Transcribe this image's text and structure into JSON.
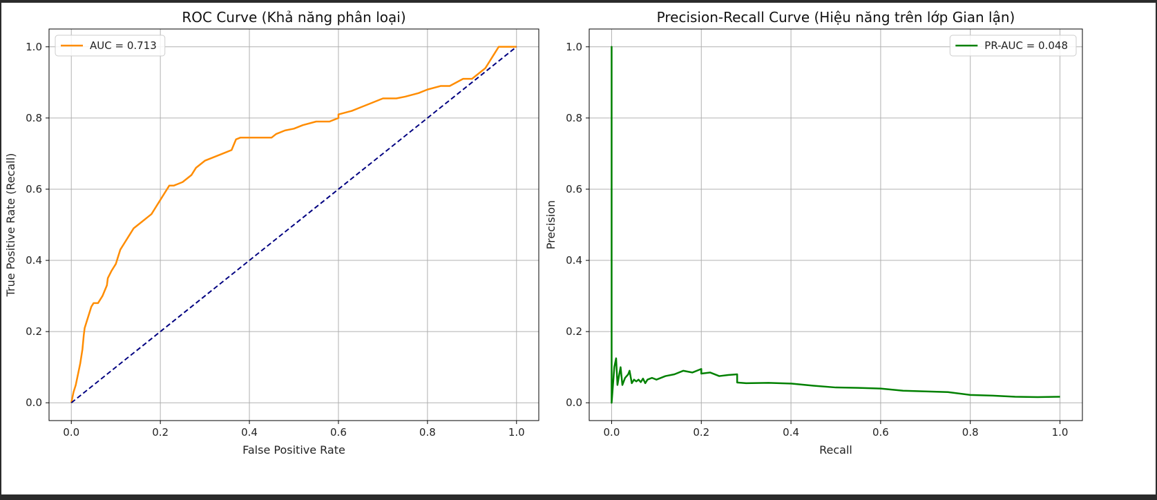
{
  "colors": {
    "roc_line": "#ff8c00",
    "diagonal": "#000080",
    "pr_line": "#008000",
    "grid": "#b0b0b0",
    "background": "#ffffff"
  },
  "chart_data": [
    {
      "type": "line",
      "title": "ROC Curve (Khả năng phân loại)",
      "xlabel": "False Positive Rate",
      "ylabel": "True Positive Rate (Recall)",
      "xlim": [
        -0.05,
        1.05
      ],
      "ylim": [
        -0.05,
        1.05
      ],
      "xticks": [
        0.0,
        0.2,
        0.4,
        0.6,
        0.8,
        1.0
      ],
      "yticks": [
        0.0,
        0.2,
        0.4,
        0.6,
        0.8,
        1.0
      ],
      "xtick_labels": [
        "0.0",
        "0.2",
        "0.4",
        "0.6",
        "0.8",
        "1.0"
      ],
      "ytick_labels": [
        "0.0",
        "0.2",
        "0.4",
        "0.6",
        "0.8",
        "1.0"
      ],
      "grid": true,
      "legend_position": "top-left",
      "series": [
        {
          "name": "AUC = 0.713",
          "color": "#ff8c00",
          "style": "solid",
          "in_legend": true,
          "x": [
            0.0,
            0.005,
            0.01,
            0.015,
            0.02,
            0.025,
            0.028,
            0.03,
            0.035,
            0.04,
            0.045,
            0.05,
            0.06,
            0.07,
            0.08,
            0.082,
            0.09,
            0.1,
            0.105,
            0.11,
            0.12,
            0.13,
            0.14,
            0.15,
            0.16,
            0.17,
            0.18,
            0.19,
            0.2,
            0.21,
            0.22,
            0.23,
            0.25,
            0.27,
            0.28,
            0.3,
            0.32,
            0.34,
            0.36,
            0.37,
            0.38,
            0.45,
            0.46,
            0.48,
            0.5,
            0.52,
            0.55,
            0.58,
            0.6,
            0.6,
            0.63,
            0.65,
            0.67,
            0.7,
            0.73,
            0.75,
            0.78,
            0.8,
            0.83,
            0.85,
            0.88,
            0.9,
            0.92,
            0.93,
            0.94,
            0.95,
            0.96,
            1.0
          ],
          "y": [
            0.0,
            0.03,
            0.05,
            0.08,
            0.11,
            0.15,
            0.19,
            0.21,
            0.23,
            0.25,
            0.27,
            0.28,
            0.28,
            0.3,
            0.33,
            0.35,
            0.37,
            0.39,
            0.41,
            0.43,
            0.45,
            0.47,
            0.49,
            0.5,
            0.51,
            0.52,
            0.53,
            0.55,
            0.57,
            0.59,
            0.61,
            0.61,
            0.62,
            0.64,
            0.66,
            0.68,
            0.69,
            0.7,
            0.71,
            0.74,
            0.745,
            0.745,
            0.755,
            0.765,
            0.77,
            0.78,
            0.79,
            0.79,
            0.8,
            0.81,
            0.82,
            0.83,
            0.84,
            0.855,
            0.855,
            0.86,
            0.87,
            0.88,
            0.89,
            0.89,
            0.91,
            0.91,
            0.93,
            0.94,
            0.96,
            0.98,
            1.0,
            1.0
          ]
        },
        {
          "name": "",
          "color": "#000080",
          "style": "dashed",
          "in_legend": false,
          "x": [
            0.0,
            1.0
          ],
          "y": [
            0.0,
            1.0
          ]
        }
      ]
    },
    {
      "type": "line",
      "title": "Precision-Recall Curve (Hiệu năng trên lớp Gian lận)",
      "xlabel": "Recall",
      "ylabel": "Precision",
      "xlim": [
        -0.05,
        1.05
      ],
      "ylim": [
        -0.05,
        1.05
      ],
      "xticks": [
        0.0,
        0.2,
        0.4,
        0.6,
        0.8,
        1.0
      ],
      "yticks": [
        0.0,
        0.2,
        0.4,
        0.6,
        0.8,
        1.0
      ],
      "xtick_labels": [
        "0.0",
        "0.2",
        "0.4",
        "0.6",
        "0.8",
        "1.0"
      ],
      "ytick_labels": [
        "0.0",
        "0.2",
        "0.4",
        "0.6",
        "0.8",
        "1.0"
      ],
      "grid": true,
      "legend_position": "top-right",
      "series": [
        {
          "name": "PR-AUC = 0.048",
          "color": "#008000",
          "style": "solid",
          "in_legend": true,
          "x": [
            0.0,
            0.0,
            0.0,
            0.003,
            0.006,
            0.01,
            0.013,
            0.017,
            0.02,
            0.024,
            0.03,
            0.037,
            0.04,
            0.045,
            0.05,
            0.055,
            0.06,
            0.065,
            0.07,
            0.075,
            0.08,
            0.09,
            0.1,
            0.12,
            0.14,
            0.16,
            0.18,
            0.2,
            0.2,
            0.22,
            0.24,
            0.26,
            0.28,
            0.28,
            0.3,
            0.35,
            0.4,
            0.45,
            0.5,
            0.55,
            0.6,
            0.65,
            0.7,
            0.75,
            0.8,
            0.85,
            0.9,
            0.95,
            1.0
          ],
          "y": [
            0.0,
            1.0,
            0.0,
            0.05,
            0.1,
            0.125,
            0.05,
            0.08,
            0.1,
            0.05,
            0.07,
            0.08,
            0.09,
            0.055,
            0.065,
            0.06,
            0.065,
            0.058,
            0.068,
            0.055,
            0.065,
            0.07,
            0.065,
            0.075,
            0.08,
            0.09,
            0.085,
            0.095,
            0.082,
            0.085,
            0.075,
            0.078,
            0.08,
            0.057,
            0.055,
            0.056,
            0.054,
            0.048,
            0.043,
            0.042,
            0.04,
            0.034,
            0.032,
            0.03,
            0.022,
            0.02,
            0.017,
            0.016,
            0.017
          ]
        }
      ]
    }
  ]
}
